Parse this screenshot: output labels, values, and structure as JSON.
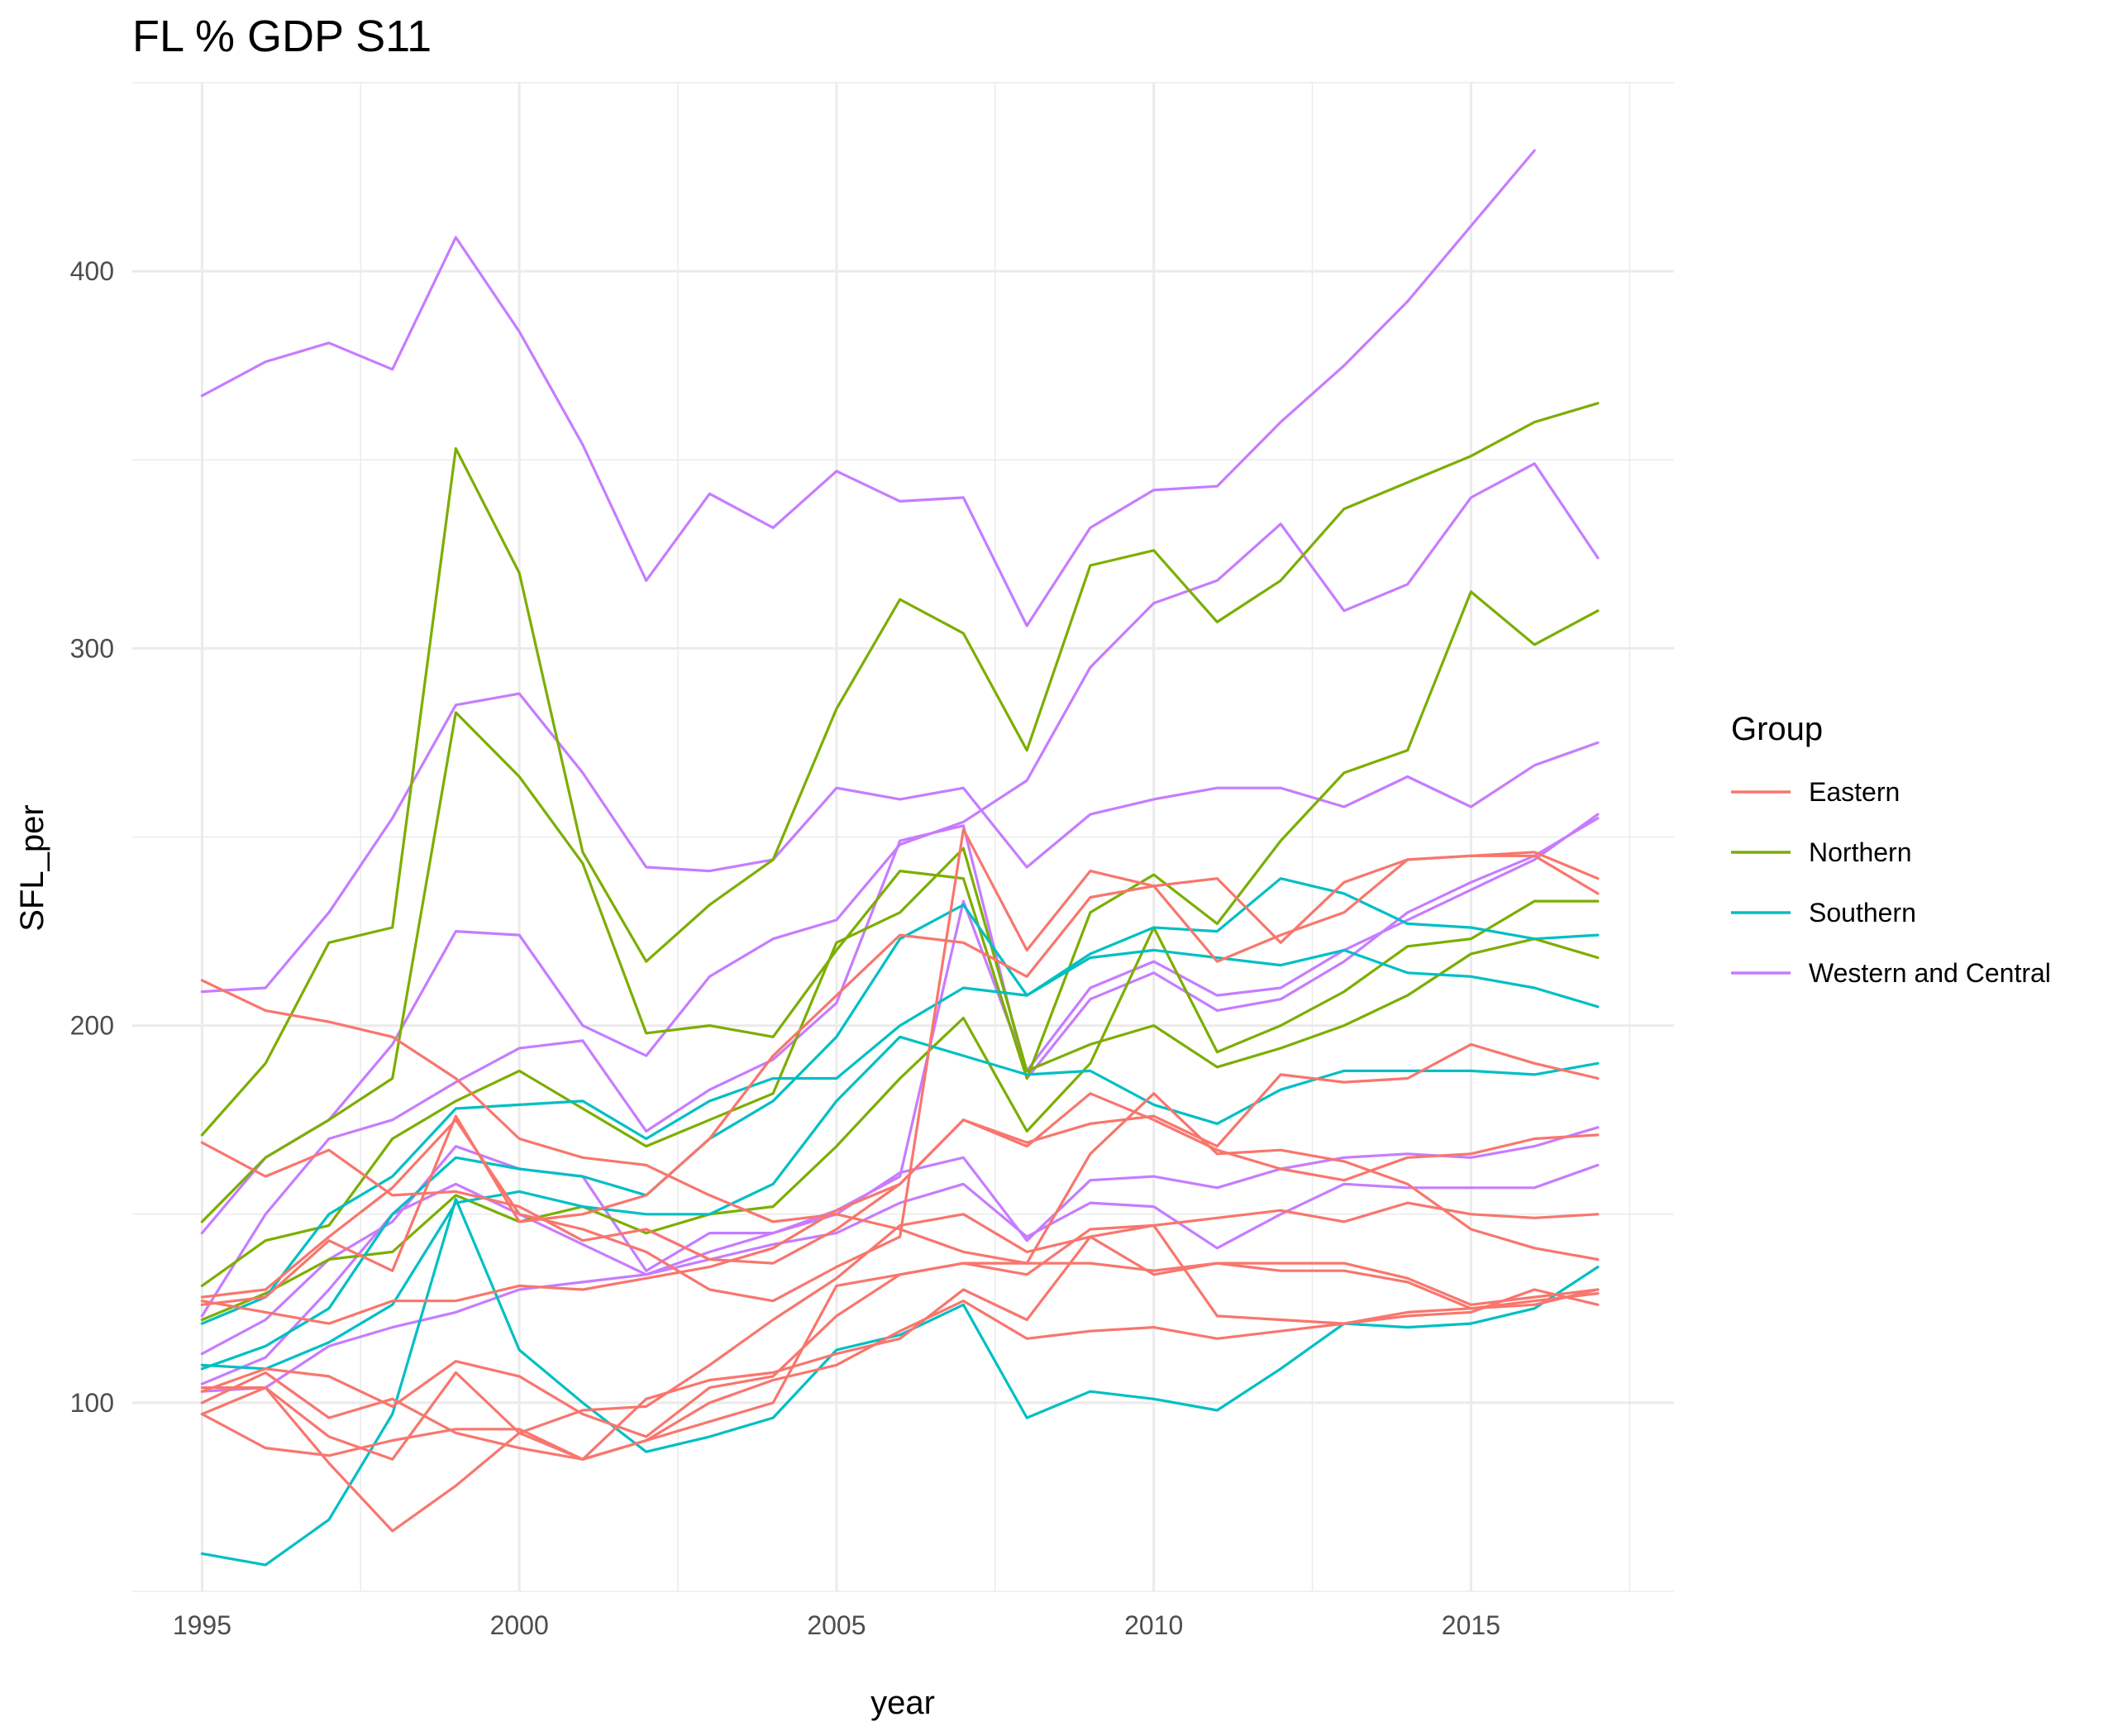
{
  "chart_data": {
    "type": "line",
    "title": "FL % GDP S11",
    "xlabel": "year",
    "ylabel": "SFL_per",
    "xlim": [
      1993.9,
      2018.2
    ],
    "ylim": [
      50,
      450
    ],
    "x_ticks": [
      1995,
      2000,
      2005,
      2010,
      2015
    ],
    "x_tick_labels": [
      "1995",
      "2000",
      "2005",
      "2010",
      "2015"
    ],
    "y_ticks": [
      100,
      200,
      300,
      400
    ],
    "y_tick_labels": [
      "100",
      "200",
      "300",
      "400"
    ],
    "grid": true,
    "legend": {
      "title": "Group",
      "position": "right",
      "entries": [
        "Eastern",
        "Northern",
        "Southern",
        "Western and Central"
      ]
    },
    "group_colors": {
      "Eastern": "#F8766D",
      "Northern": "#7CAE00",
      "Southern": "#00BFC4",
      "Western and Central": "#C77CFF"
    },
    "x": [
      1995,
      1996,
      1997,
      1998,
      1999,
      2000,
      2001,
      2002,
      2003,
      2004,
      2005,
      2006,
      2007,
      2008,
      2009,
      2010,
      2011,
      2012,
      2013,
      2014,
      2015,
      2016,
      2017
    ],
    "series": [
      {
        "group": "Western and Central",
        "values": [
          367,
          376,
          381,
          374,
          409,
          384,
          354,
          318,
          341,
          332,
          347,
          339,
          340,
          306,
          332,
          342,
          343,
          360,
          375,
          392,
          412,
          432,
          null
        ]
      },
      {
        "group": "Western and Central",
        "values": [
          209,
          210,
          230,
          255,
          285,
          288,
          267,
          242,
          241,
          244,
          263,
          260,
          263,
          242,
          256,
          260,
          263,
          263,
          258,
          266,
          258,
          269,
          275
        ]
      },
      {
        "group": "Western and Central",
        "values": [
          145,
          165,
          175,
          195,
          225,
          224,
          200,
          192,
          213,
          223,
          228,
          248,
          254,
          265,
          295,
          312,
          318,
          333,
          310,
          317,
          340,
          349,
          324
        ]
      },
      {
        "group": "Western and Central",
        "values": [
          123,
          150,
          170,
          175,
          185,
          194,
          196,
          172,
          183,
          191,
          206,
          249,
          253,
          186,
          207,
          214,
          204,
          207,
          217,
          230,
          238,
          245,
          255
        ]
      },
      {
        "group": "Western and Central",
        "values": [
          113,
          122,
          138,
          148,
          168,
          162,
          160,
          135,
          145,
          145,
          150,
          161,
          165,
          143,
          159,
          160,
          157,
          162,
          165,
          166,
          165,
          168,
          173
        ]
      },
      {
        "group": "Western and Central",
        "values": [
          105,
          112,
          130,
          150,
          158,
          150,
          142,
          134,
          138,
          142,
          145,
          153,
          158,
          144,
          153,
          152,
          141,
          150,
          158,
          157,
          157,
          157,
          163
        ]
      },
      {
        "group": "Western and Central",
        "values": [
          103,
          104,
          115,
          120,
          124,
          130,
          132,
          134,
          140,
          145,
          151,
          160,
          233,
          188,
          210,
          217,
          208,
          210,
          220,
          228,
          236,
          244,
          256
        ]
      },
      {
        "group": "Northern",
        "values": [
          171,
          190,
          222,
          226,
          353,
          320,
          246,
          217,
          232,
          244,
          284,
          313,
          304,
          273,
          322,
          326,
          307,
          318,
          337,
          344,
          351,
          360,
          365
        ]
      },
      {
        "group": "Northern",
        "values": [
          148,
          165,
          175,
          186,
          283,
          266,
          243,
          198,
          200,
          197,
          220,
          241,
          239,
          186,
          230,
          240,
          227,
          249,
          267,
          273,
          315,
          301,
          310
        ]
      },
      {
        "group": "Northern",
        "values": [
          131,
          143,
          147,
          170,
          180,
          188,
          178,
          168,
          175,
          182,
          222,
          230,
          247,
          188,
          195,
          200,
          189,
          194,
          200,
          208,
          219,
          223,
          218
        ]
      },
      {
        "group": "Northern",
        "values": [
          122,
          129,
          138,
          140,
          155,
          148,
          152,
          145,
          150,
          152,
          168,
          186,
          202,
          172,
          190,
          226,
          193,
          200,
          209,
          221,
          223,
          233,
          233
        ]
      },
      {
        "group": "Southern",
        "values": [
          121,
          128,
          150,
          160,
          178,
          179,
          180,
          170,
          180,
          186,
          186,
          200,
          210,
          208,
          218,
          220,
          218,
          216,
          220,
          214,
          213,
          210,
          205
        ]
      },
      {
        "group": "Southern",
        "values": [
          109,
          115,
          125,
          150,
          165,
          162,
          160,
          155,
          170,
          180,
          197,
          223,
          232,
          208,
          219,
          226,
          225,
          239,
          235,
          227,
          226,
          223,
          224
        ]
      },
      {
        "group": "Southern",
        "values": [
          110,
          109,
          116,
          126,
          153,
          156,
          152,
          150,
          150,
          158,
          180,
          197,
          192,
          187,
          188,
          179,
          174,
          183,
          188,
          188,
          188,
          187,
          190
        ]
      },
      {
        "group": "Southern",
        "values": [
          60,
          57,
          69,
          97,
          154,
          114,
          100,
          87,
          91,
          96,
          114,
          118,
          126,
          96,
          103,
          101,
          98,
          109,
          121,
          120,
          121,
          125,
          136
        ]
      },
      {
        "group": "Eastern",
        "values": [
          212,
          204,
          201,
          197,
          186,
          170,
          165,
          163,
          155,
          148,
          150,
          146,
          140,
          137,
          166,
          182,
          166,
          167,
          164,
          158,
          146,
          141,
          138
        ]
      },
      {
        "group": "Eastern",
        "values": [
          169,
          160,
          167,
          155,
          156,
          152,
          143,
          146,
          138,
          137,
          146,
          158,
          175,
          168,
          182,
          175,
          167,
          162,
          159,
          165,
          166,
          170,
          171
        ]
      },
      {
        "group": "Eastern",
        "values": [
          128,
          130,
          144,
          157,
          175,
          150,
          146,
          140,
          130,
          127,
          136,
          144,
          252,
          220,
          241,
          237,
          239,
          222,
          238,
          244,
          245,
          245,
          235
        ]
      },
      {
        "group": "Eastern",
        "values": [
          127,
          124,
          121,
          127,
          127,
          131,
          130,
          133,
          136,
          141,
          151,
          158,
          175,
          169,
          174,
          176,
          168,
          187,
          185,
          186,
          195,
          190,
          186
        ]
      },
      {
        "group": "Eastern",
        "values": [
          126,
          128,
          143,
          135,
          176,
          148,
          150,
          155,
          170,
          192,
          208,
          224,
          222,
          213,
          234,
          237,
          217,
          224,
          230,
          244,
          245,
          246,
          239
        ]
      },
      {
        "group": "Eastern",
        "values": [
          104,
          104,
          91,
          85,
          108,
          92,
          98,
          99,
          110,
          122,
          133,
          147,
          150,
          140,
          144,
          147,
          149,
          151,
          148,
          153,
          150,
          149,
          150
        ]
      },
      {
        "group": "Eastern",
        "values": [
          100,
          108,
          96,
          101,
          92,
          88,
          85,
          101,
          106,
          108,
          113,
          117,
          130,
          122,
          144,
          134,
          137,
          135,
          135,
          132,
          125,
          126,
          130
        ]
      },
      {
        "group": "Eastern",
        "values": [
          97,
          104,
          84,
          66,
          78,
          92,
          85,
          90,
          100,
          106,
          110,
          119,
          127,
          117,
          119,
          120,
          117,
          119,
          121,
          123,
          124,
          130,
          126
        ]
      },
      {
        "group": "Eastern",
        "values": [
          97,
          88,
          86,
          90,
          93,
          93,
          85,
          90,
          95,
          100,
          131,
          134,
          137,
          137,
          137,
          135,
          137,
          137,
          137,
          133,
          126,
          128,
          130
        ]
      },
      {
        "group": "Eastern",
        "values": [
          103,
          109,
          107,
          99,
          111,
          107,
          97,
          91,
          104,
          107,
          123,
          134,
          137,
          134,
          146,
          147,
          123,
          122,
          121,
          124,
          125,
          127,
          129
        ]
      }
    ]
  }
}
